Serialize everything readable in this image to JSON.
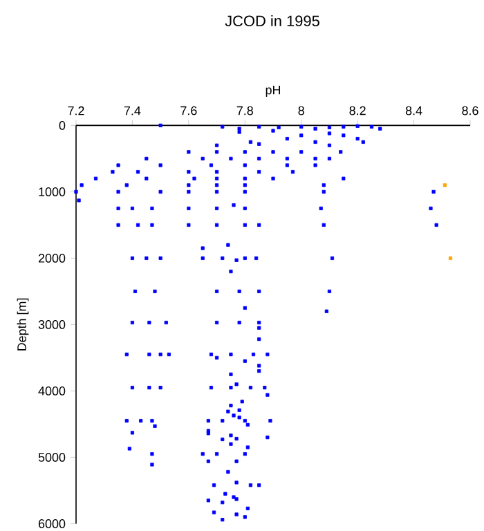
{
  "chart_data": {
    "type": "scatter",
    "title": "JCOD in 1995",
    "xlabel": "pH",
    "ylabel": "Depth [m]",
    "xlim": [
      7.2,
      8.6
    ],
    "xticks": [
      7.2,
      7.4,
      7.6,
      7.8,
      8,
      8.2,
      8.4,
      8.6
    ],
    "ylim": [
      6000,
      0
    ],
    "yticks": [
      0,
      1000,
      2000,
      3000,
      4000,
      5000,
      6000
    ],
    "marker": "square",
    "series": [
      {
        "color": "#0000ff",
        "x": [
          7.5,
          7.72,
          7.78,
          7.85,
          7.92,
          8.0,
          8.05,
          8.1,
          8.15,
          8.2,
          8.25,
          8.28,
          7.78,
          7.9,
          8.0,
          8.1,
          8.2,
          8.22,
          7.82,
          7.95,
          8.05,
          7.7,
          7.85,
          8.1,
          8.15,
          7.6,
          7.7,
          7.8,
          7.9,
          8.0,
          8.14,
          7.45,
          7.65,
          7.75,
          7.85,
          7.95,
          8.05,
          8.1,
          7.35,
          7.5,
          7.68,
          7.8,
          7.95,
          8.05,
          7.33,
          7.42,
          7.6,
          7.7,
          7.85,
          7.97,
          7.27,
          7.45,
          7.62,
          7.7,
          7.8,
          7.9,
          8.15,
          7.22,
          7.38,
          7.6,
          7.7,
          7.8,
          8.08,
          7.2,
          7.35,
          7.5,
          7.6,
          7.7,
          7.8,
          8.08,
          8.47,
          7.21,
          7.35,
          7.4,
          7.47,
          7.6,
          7.7,
          7.8,
          8.07,
          8.46,
          7.76,
          7.35,
          7.42,
          7.47,
          7.6,
          7.7,
          7.8,
          7.85,
          8.08,
          8.48,
          7.65,
          7.74,
          7.4,
          7.45,
          7.5,
          7.65,
          7.72,
          7.8,
          7.84,
          8.11,
          7.77,
          7.75,
          7.41,
          7.48,
          7.7,
          7.78,
          7.85,
          8.1,
          7.8,
          8.09,
          7.4,
          7.46,
          7.52,
          7.7,
          7.78,
          7.85,
          7.85,
          7.85,
          7.38,
          7.46,
          7.5,
          7.53,
          7.68,
          7.75,
          7.83,
          7.88,
          7.7,
          7.8,
          7.85,
          7.85,
          7.75,
          7.4,
          7.46,
          7.5,
          7.68,
          7.75,
          7.82,
          7.87,
          7.77,
          7.88,
          7.79,
          7.75,
          7.78,
          7.74,
          7.76,
          7.78,
          7.38,
          7.43,
          7.47,
          7.67,
          7.72,
          7.8,
          7.89,
          7.81,
          7.48,
          7.67,
          7.67,
          7.4,
          7.75,
          7.72,
          7.77,
          7.75,
          7.88,
          7.81,
          7.39,
          7.47,
          7.65,
          7.7,
          7.8,
          7.67,
          7.77,
          7.47,
          7.74,
          7.69,
          7.77,
          7.82,
          7.85,
          7.73,
          7.76,
          7.67,
          7.72,
          7.77,
          7.81,
          7.69,
          7.77,
          7.8,
          7.72
        ],
        "values": [
          0,
          20,
          50,
          20,
          30,
          20,
          50,
          30,
          20,
          10,
          20,
          50,
          100,
          80,
          150,
          120,
          200,
          250,
          250,
          200,
          250,
          300,
          280,
          300,
          150,
          400,
          400,
          400,
          400,
          400,
          400,
          500,
          500,
          500,
          500,
          500,
          500,
          500,
          600,
          600,
          600,
          600,
          600,
          600,
          700,
          700,
          700,
          700,
          700,
          700,
          800,
          800,
          800,
          800,
          800,
          800,
          800,
          900,
          900,
          900,
          900,
          900,
          900,
          1000,
          1000,
          1000,
          1000,
          1000,
          1000,
          1000,
          1000,
          1130,
          1250,
          1250,
          1250,
          1250,
          1250,
          1250,
          1250,
          1250,
          1200,
          1500,
          1500,
          1500,
          1500,
          1500,
          1500,
          1500,
          1500,
          1500,
          1850,
          1800,
          2000,
          2000,
          2000,
          2000,
          2000,
          2000,
          2000,
          2000,
          2030,
          2200,
          2500,
          2500,
          2500,
          2500,
          2500,
          2500,
          2750,
          2800,
          2970,
          2970,
          2970,
          2970,
          2970,
          2970,
          3050,
          3220,
          3450,
          3450,
          3450,
          3450,
          3450,
          3450,
          3450,
          3450,
          3500,
          3550,
          3620,
          3700,
          3750,
          3950,
          3950,
          3950,
          3950,
          3950,
          3950,
          3950,
          3900,
          4060,
          4160,
          4220,
          4290,
          4310,
          4370,
          4400,
          4450,
          4450,
          4450,
          4450,
          4450,
          4450,
          4450,
          4510,
          4530,
          4600,
          4640,
          4630,
          4670,
          4730,
          4720,
          4800,
          4700,
          4850,
          4870,
          4950,
          4950,
          4950,
          4950,
          5060,
          5060,
          5110,
          5220,
          5420,
          5380,
          5420,
          5420,
          5550,
          5600,
          5650,
          5680,
          5630,
          5770,
          5830,
          5860,
          5900,
          5940
        ]
      },
      {
        "color": "#ffa500",
        "x": [
          8.51,
          8.53
        ],
        "values": [
          900,
          2000
        ]
      }
    ]
  }
}
